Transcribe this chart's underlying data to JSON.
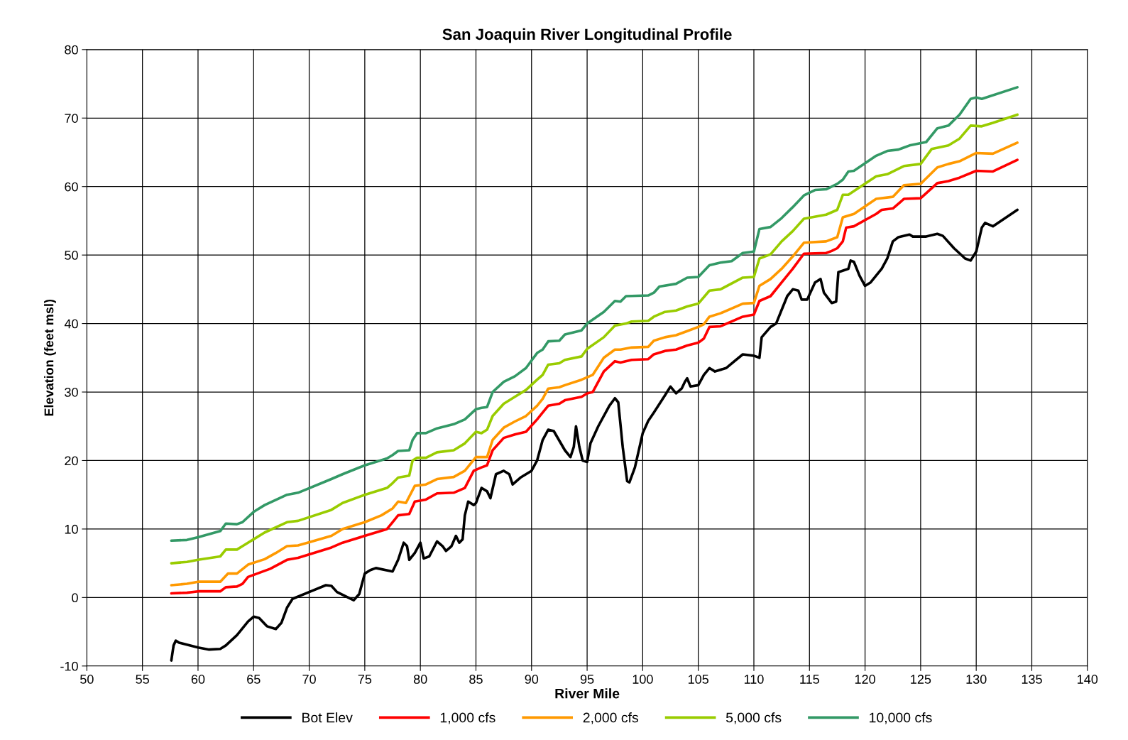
{
  "chart_data": {
    "type": "line",
    "title": "San Joaquin River Longitudinal Profile",
    "xlabel": "River Mile",
    "ylabel": "Elevation (feet msl)",
    "xlim": [
      50,
      140
    ],
    "xticks": [
      50,
      55,
      60,
      65,
      70,
      75,
      80,
      85,
      90,
      95,
      100,
      105,
      110,
      115,
      120,
      125,
      130,
      135,
      140
    ],
    "ylim": [
      -10,
      80
    ],
    "yticks": [
      -10,
      0,
      10,
      20,
      30,
      40,
      50,
      60,
      70,
      80
    ],
    "grid": true,
    "legend": "bottom",
    "marker": "none",
    "line_style": "solid",
    "series": [
      {
        "name": "Bot Elev",
        "color": "#000000",
        "x": [
          57.6,
          57.8,
          58,
          58.3,
          60,
          61,
          62,
          62.5,
          63.5,
          64.5,
          65,
          65.5,
          66.2,
          67,
          67.5,
          68,
          68.5,
          70,
          71.5,
          72,
          72.5,
          73.5,
          74,
          74.5,
          75,
          75.5,
          76,
          77.5,
          78,
          78.5,
          78.8,
          79,
          79.5,
          80,
          80.3,
          80.8,
          81.5,
          82,
          82.3,
          82.8,
          83.2,
          83.5,
          83.8,
          84,
          84.3,
          84.8,
          85,
          85.5,
          86,
          86.3,
          86.8,
          87.5,
          88,
          88.3,
          89,
          90,
          90.5,
          91,
          91.5,
          92,
          93,
          93.5,
          93.8,
          94,
          94.3,
          94.6,
          95,
          95.3,
          96,
          97,
          97.5,
          97.8,
          98.2,
          98.6,
          98.8,
          99.3,
          100,
          100.5,
          101,
          102,
          102.5,
          103,
          103.5,
          103.8,
          104,
          104.3,
          105,
          105.5,
          106,
          106.5,
          107.5,
          109,
          110,
          110.5,
          110.7,
          111.5,
          112,
          112.5,
          113,
          113.5,
          114,
          114.3,
          114.8,
          115.5,
          116,
          116.3,
          117,
          117.4,
          117.6,
          118.5,
          118.7,
          119,
          119.5,
          120,
          120.5,
          121.5,
          122,
          122.5,
          123,
          124,
          124.3,
          125.5,
          126.5,
          127,
          128,
          129,
          129.5,
          130,
          130.5,
          130.8,
          131.5,
          133.7
        ],
        "values": [
          -9.2,
          -7,
          -6.3,
          -6.6,
          -7.3,
          -7.6,
          -7.5,
          -7,
          -5.5,
          -3.5,
          -2.8,
          -3,
          -4.2,
          -4.6,
          -3.7,
          -1.5,
          -0.2,
          0.8,
          1.8,
          1.7,
          0.8,
          0,
          -0.4,
          0.5,
          3.5,
          4,
          4.3,
          3.8,
          5.5,
          8,
          7.5,
          5.5,
          6.5,
          8,
          5.7,
          6,
          8.2,
          7.5,
          6.8,
          7.5,
          9,
          8,
          8.5,
          12,
          14,
          13.5,
          13.8,
          16,
          15.5,
          14.5,
          18,
          18.5,
          18,
          16.5,
          17.5,
          18.5,
          20,
          23,
          24.5,
          24.3,
          21.5,
          20.5,
          22,
          25,
          22,
          20,
          19.8,
          22.5,
          25,
          28,
          29.1,
          28.5,
          22,
          17,
          16.8,
          19,
          24,
          25.8,
          27,
          29.5,
          30.8,
          29.8,
          30.5,
          31.5,
          32,
          30.8,
          31,
          32.5,
          33.5,
          33,
          33.5,
          35.5,
          35.3,
          35,
          38,
          39.5,
          40,
          42,
          44,
          45,
          44.8,
          43.5,
          43.5,
          46,
          46.5,
          44.5,
          43,
          43.2,
          47.5,
          48,
          49.2,
          49,
          47,
          45.5,
          46,
          48,
          49.5,
          52,
          52.6,
          53,
          52.7,
          52.7,
          53.1,
          52.8,
          51,
          49.5,
          49.2,
          50.5,
          54,
          54.7,
          54.2,
          56.6
        ]
      },
      {
        "name": "1,000 cfs",
        "color": "#ff0000",
        "x": [
          57.6,
          59,
          60,
          62,
          62.5,
          63.5,
          64,
          64.5,
          65.5,
          66.5,
          68,
          69,
          72,
          73,
          75,
          77,
          77.5,
          78,
          79,
          79.5,
          80.5,
          81.5,
          83,
          84,
          84.8,
          85.5,
          86,
          86.5,
          87.5,
          88.5,
          89.5,
          90.5,
          91,
          91.5,
          92.5,
          93,
          94.5,
          95,
          95.5,
          96.5,
          97.5,
          98,
          99,
          100.5,
          101,
          102,
          103,
          104,
          105,
          105.5,
          106,
          107,
          109,
          110,
          110.5,
          111.5,
          112.5,
          113.5,
          114.5,
          116.5,
          117,
          117.5,
          118,
          118.3,
          119,
          121,
          121.5,
          122.5,
          123.5,
          125,
          126.5,
          127.5,
          128.5,
          130,
          131.5,
          133.7
        ],
        "values": [
          0.6,
          0.7,
          0.9,
          0.9,
          1.5,
          1.6,
          2,
          3,
          3.6,
          4.2,
          5.5,
          5.8,
          7.3,
          8,
          9,
          10,
          11,
          12,
          12.2,
          14,
          14.3,
          15.2,
          15.3,
          16,
          18.5,
          19,
          19.3,
          21.5,
          23.3,
          23.8,
          24.2,
          26,
          27,
          28,
          28.3,
          28.8,
          29.3,
          29.8,
          30,
          33,
          34.5,
          34.3,
          34.7,
          34.8,
          35.5,
          36,
          36.2,
          36.8,
          37.2,
          37.8,
          39.5,
          39.6,
          41,
          41.3,
          43.3,
          44,
          46,
          48,
          50.2,
          50.3,
          50.6,
          51,
          52,
          54,
          54.2,
          56,
          56.6,
          56.8,
          58.2,
          58.3,
          60.5,
          60.8,
          61.3,
          62.3,
          62.2,
          63.9
        ]
      },
      {
        "name": "2,000 cfs",
        "color": "#ff9900",
        "x": [
          57.6,
          59,
          60,
          62,
          62.7,
          63.5,
          64.5,
          66,
          67,
          68,
          69,
          72,
          73,
          75,
          76.5,
          77.5,
          78,
          78.7,
          79.5,
          80.5,
          81.5,
          83,
          84,
          85,
          86,
          86.5,
          87.5,
          88.5,
          89.5,
          90.5,
          91,
          91.5,
          92.5,
          93,
          94.5,
          95.5,
          96.5,
          97.5,
          98,
          99,
          100.5,
          101,
          102,
          103,
          104,
          105,
          105.5,
          106,
          107,
          109,
          110,
          110.5,
          111.5,
          112.5,
          113.5,
          114.5,
          116.5,
          117.5,
          118,
          119,
          121,
          122.5,
          123.5,
          125,
          126.5,
          127.5,
          128.5,
          130,
          131.5,
          133.7
        ],
        "values": [
          1.8,
          2,
          2.3,
          2.3,
          3.5,
          3.5,
          4.8,
          5.6,
          6.5,
          7.5,
          7.6,
          9,
          10,
          11,
          12,
          13,
          14,
          13.8,
          16.3,
          16.5,
          17.3,
          17.6,
          18.5,
          20.5,
          20.5,
          23,
          24.8,
          25.7,
          26.5,
          28,
          29,
          30.5,
          30.7,
          31,
          31.8,
          32.5,
          35,
          36.2,
          36.2,
          36.5,
          36.6,
          37.5,
          38,
          38.3,
          38.9,
          39.5,
          39.9,
          41,
          41.5,
          42.9,
          43,
          45.5,
          46.5,
          48,
          49.8,
          51.8,
          52,
          52.6,
          55.5,
          56,
          58.2,
          58.5,
          60.2,
          60.4,
          62.8,
          63.3,
          63.7,
          64.9,
          64.8,
          66.4
        ]
      },
      {
        "name": "5,000 cfs",
        "color": "#99cc00",
        "x": [
          57.6,
          59,
          60,
          62,
          62.5,
          63.5,
          64,
          65,
          66,
          68,
          69,
          72,
          73,
          75,
          77,
          77.5,
          78,
          79,
          79.3,
          79.7,
          80.5,
          81.5,
          83,
          84,
          85,
          85.5,
          86,
          86.5,
          87.5,
          88.5,
          89.5,
          90.5,
          91,
          91.5,
          92.5,
          93,
          94.5,
          95,
          96.5,
          97.5,
          98.5,
          99,
          100.5,
          101,
          102,
          103,
          104,
          105,
          106,
          107,
          109,
          110,
          110.5,
          111.5,
          112.5,
          113.5,
          114.5,
          116.5,
          117.5,
          118,
          118.5,
          121,
          122,
          123.5,
          125,
          126,
          127.5,
          128.5,
          129.5,
          130.5,
          131.5,
          133.7
        ],
        "values": [
          5,
          5.2,
          5.5,
          6,
          7,
          7,
          7.5,
          8.5,
          9.5,
          11,
          11.2,
          12.8,
          13.8,
          15,
          16,
          16.7,
          17.5,
          17.8,
          20,
          20.4,
          20.4,
          21.2,
          21.5,
          22.5,
          24.2,
          24,
          24.5,
          26.5,
          28.3,
          29.3,
          30.3,
          31.8,
          32.5,
          34,
          34.2,
          34.7,
          35.2,
          36.3,
          38,
          39.7,
          40,
          40.3,
          40.4,
          41,
          41.7,
          41.9,
          42.5,
          42.9,
          44.8,
          45,
          46.7,
          46.8,
          49.5,
          50.1,
          52,
          53.5,
          55.3,
          55.9,
          56.6,
          58.8,
          58.8,
          61.5,
          61.8,
          63,
          63.3,
          65.5,
          66,
          67,
          68.9,
          68.8,
          69.3,
          70.5
        ]
      },
      {
        "name": "10,000 cfs",
        "color": "#339966",
        "x": [
          57.6,
          59,
          60,
          62,
          62.5,
          63.5,
          64,
          65,
          66,
          68,
          69,
          72,
          73,
          75,
          77,
          77.5,
          78,
          79,
          79.3,
          79.7,
          80.5,
          81.5,
          83,
          84,
          85,
          85.5,
          86,
          86.5,
          87.5,
          88.5,
          89.5,
          90.5,
          91,
          91.5,
          92.5,
          93,
          94.5,
          95,
          96.5,
          97.5,
          98,
          98.5,
          100.5,
          101,
          101.5,
          103,
          104,
          105,
          106,
          107,
          108,
          109,
          110,
          110.5,
          111.5,
          112.5,
          113.5,
          114.5,
          115.5,
          116.5,
          117.5,
          118,
          118.5,
          119,
          121,
          122,
          123,
          124,
          125.5,
          126.5,
          127.5,
          128.5,
          129.5,
          130,
          130.5,
          133.7
        ],
        "values": [
          8.3,
          8.4,
          8.8,
          9.7,
          10.8,
          10.7,
          11,
          12.5,
          13.5,
          15,
          15.3,
          17.3,
          18,
          19.3,
          20.3,
          20.8,
          21.4,
          21.5,
          23,
          24,
          24,
          24.7,
          25.3,
          26,
          27.5,
          27.7,
          27.8,
          30,
          31.5,
          32.3,
          33.5,
          35.7,
          36.2,
          37.4,
          37.5,
          38.4,
          39,
          40,
          41.7,
          43.3,
          43.2,
          44,
          44.1,
          44.5,
          45.4,
          45.8,
          46.7,
          46.8,
          48.5,
          48.9,
          49.1,
          50.3,
          50.5,
          53.8,
          54.1,
          55.4,
          57,
          58.7,
          59.5,
          59.6,
          60.4,
          61,
          62.2,
          62.3,
          64.5,
          65.2,
          65.4,
          66,
          66.5,
          68.5,
          68.9,
          70.5,
          72.8,
          73,
          72.8,
          74.5
        ]
      }
    ]
  }
}
